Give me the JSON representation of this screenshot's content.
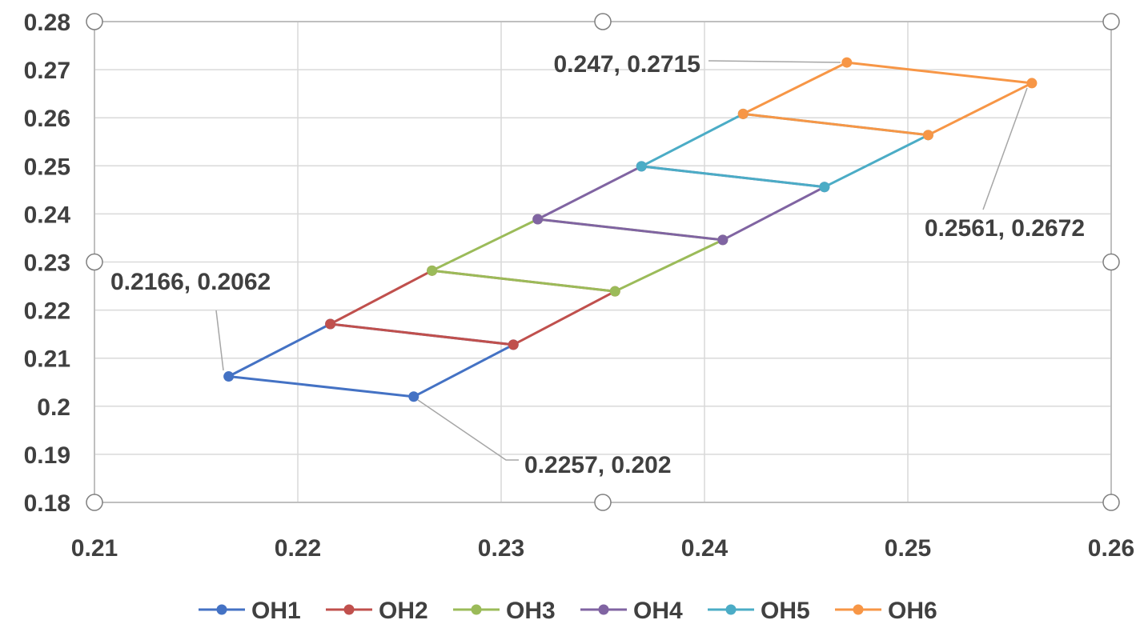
{
  "chart_data": {
    "type": "line",
    "title": "",
    "xlabel": "",
    "ylabel": "",
    "xlim": [
      0.21,
      0.26
    ],
    "ylim": [
      0.18,
      0.28
    ],
    "xticks": [
      "0.21",
      "0.22",
      "0.23",
      "0.24",
      "0.25",
      "0.26"
    ],
    "yticks": [
      "0.18",
      "0.19",
      "0.2",
      "0.21",
      "0.22",
      "0.23",
      "0.24",
      "0.25",
      "0.26",
      "0.27",
      "0.28"
    ],
    "grid": true,
    "legend_position": "bottom",
    "series": [
      {
        "name": "OH1",
        "color": "#4472C4",
        "points": [
          [
            0.2166,
            0.2062
          ],
          [
            0.2257,
            0.202
          ],
          [
            0.2306,
            0.2128
          ],
          [
            0.2216,
            0.2171
          ],
          [
            0.2166,
            0.2062
          ]
        ]
      },
      {
        "name": "OH2",
        "color": "#C0504D",
        "points": [
          [
            0.2216,
            0.2171
          ],
          [
            0.2306,
            0.2128
          ],
          [
            0.2356,
            0.2239
          ],
          [
            0.2266,
            0.2282
          ],
          [
            0.2216,
            0.2171
          ]
        ]
      },
      {
        "name": "OH3",
        "color": "#9BBB59",
        "points": [
          [
            0.2266,
            0.2282
          ],
          [
            0.2356,
            0.2239
          ],
          [
            0.2409,
            0.2346
          ],
          [
            0.2318,
            0.2389
          ],
          [
            0.2266,
            0.2282
          ]
        ]
      },
      {
        "name": "OH4",
        "color": "#8064A2",
        "points": [
          [
            0.2318,
            0.2389
          ],
          [
            0.2409,
            0.2346
          ],
          [
            0.2459,
            0.2456
          ],
          [
            0.2369,
            0.2499
          ],
          [
            0.2318,
            0.2389
          ]
        ]
      },
      {
        "name": "OH5",
        "color": "#4BACC6",
        "points": [
          [
            0.2369,
            0.2499
          ],
          [
            0.2459,
            0.2456
          ],
          [
            0.251,
            0.2564
          ],
          [
            0.2419,
            0.2608
          ],
          [
            0.2369,
            0.2499
          ]
        ]
      },
      {
        "name": "OH6",
        "color": "#F79646",
        "points": [
          [
            0.2419,
            0.2608
          ],
          [
            0.251,
            0.2564
          ],
          [
            0.2561,
            0.2672
          ],
          [
            0.247,
            0.2715
          ],
          [
            0.2419,
            0.2608
          ]
        ]
      }
    ],
    "annotations": [
      {
        "text": "0.2166, 0.2062",
        "x": 0.2166,
        "y": 0.2062
      },
      {
        "text": "0.2257, 0.202",
        "x": 0.2257,
        "y": 0.202
      },
      {
        "text": "0.247, 0.2715",
        "x": 0.247,
        "y": 0.2715
      },
      {
        "text": "0.2561, 0.2672",
        "x": 0.2561,
        "y": 0.2672
      }
    ]
  }
}
